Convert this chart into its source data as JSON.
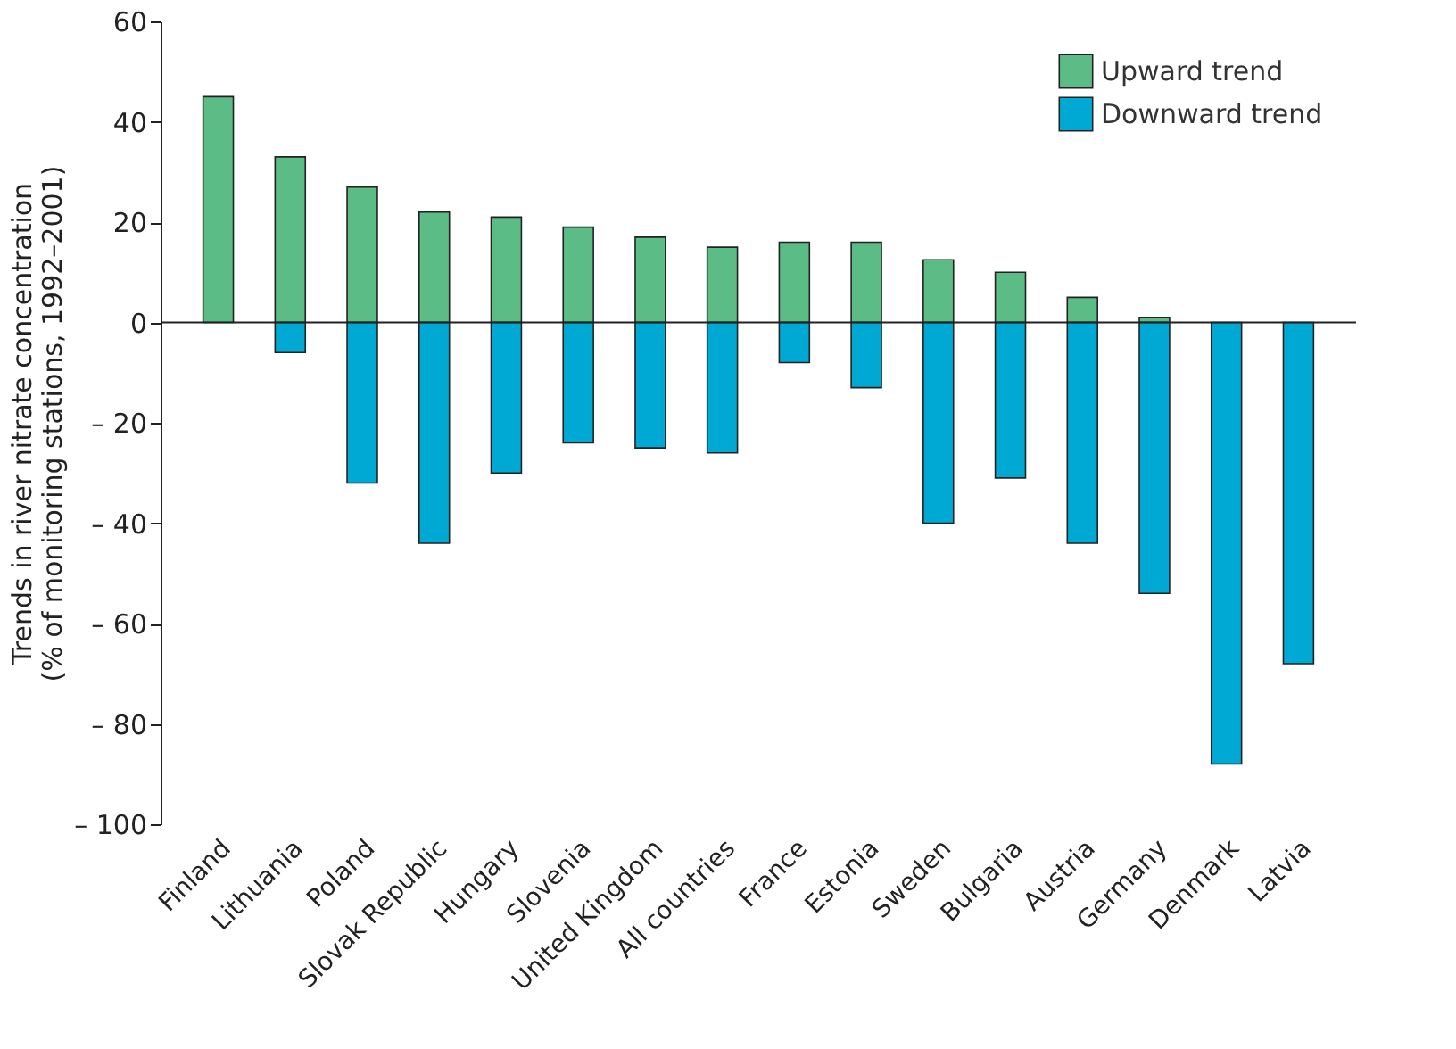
{
  "chart_data": {
    "type": "bar",
    "stacked": true,
    "ylabel": "Trends in river nitrate concentration\n(% of monitoring stations, 1992–2001)",
    "categories": [
      "Finland",
      "Lithuania",
      "Poland",
      "Slovak Republic",
      "Hungary",
      "Slovenia",
      "United Kingdom",
      "All countries",
      "France",
      "Estonia",
      "Sweden",
      "Bulgaria",
      "Austria",
      "Germany",
      "Denmark",
      "Latvia"
    ],
    "series": [
      {
        "name": "Upward trend",
        "color": "#5bbd85",
        "values": [
          45,
          33,
          27,
          22,
          21,
          19,
          17,
          15,
          16,
          16,
          12.5,
          10,
          5,
          1,
          null,
          null
        ]
      },
      {
        "name": "Downward trend",
        "color": "#00a9d4",
        "values": [
          null,
          -6,
          -32,
          -44,
          -30,
          -24,
          -25,
          -26,
          -8,
          -13,
          -40,
          -31,
          -44,
          -54,
          -88,
          -68
        ]
      }
    ],
    "ylim": [
      -100,
      60
    ],
    "yticks": [
      {
        "value": -100,
        "label": "– 100"
      },
      {
        "value": -80,
        "label": "– 80"
      },
      {
        "value": -60,
        "label": "– 60"
      },
      {
        "value": -40,
        "label": "– 40"
      },
      {
        "value": -20,
        "label": "– 20"
      },
      0,
      20,
      40,
      60
    ],
    "ref_lines": [
      {
        "axis": "y",
        "value": 0,
        "color": "#222222"
      }
    ],
    "legend": "top right",
    "grid": false
  }
}
